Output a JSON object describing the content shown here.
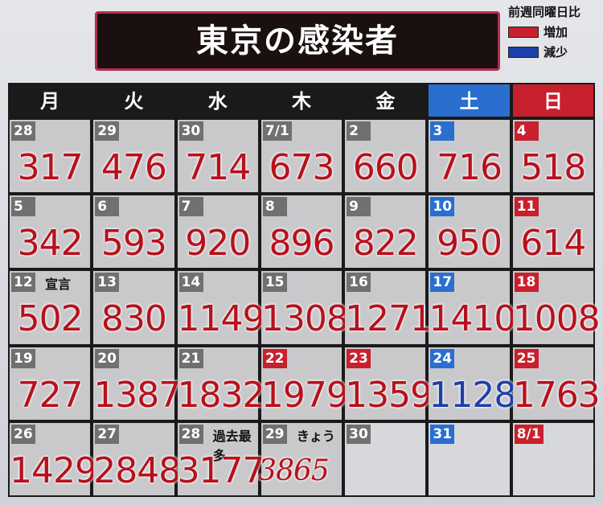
{
  "title": "東京の感染者",
  "legend": {
    "heading": "前週同曜日比",
    "items": [
      {
        "label": "増加",
        "color": "#c8202c"
      },
      {
        "label": "減少",
        "color": "#1f3fa8"
      }
    ]
  },
  "days": [
    {
      "label": "月",
      "color": "#1a1a1a"
    },
    {
      "label": "火",
      "color": "#1a1a1a"
    },
    {
      "label": "水",
      "color": "#1a1a1a"
    },
    {
      "label": "木",
      "color": "#1a1a1a"
    },
    {
      "label": "金",
      "color": "#1a1a1a"
    },
    {
      "label": "土",
      "color": "#2a6fd0"
    },
    {
      "label": "日",
      "color": "#c8202c"
    }
  ],
  "weeks": [
    [
      {
        "date": "28",
        "value": 317,
        "badge": "#707070",
        "value_color": "#b8101c"
      },
      {
        "date": "29",
        "value": 476,
        "badge": "#707070",
        "value_color": "#b8101c"
      },
      {
        "date": "30",
        "value": 714,
        "badge": "#707070",
        "value_color": "#b8101c"
      },
      {
        "date": "7/1",
        "value": 673,
        "badge": "#707070",
        "value_color": "#b8101c"
      },
      {
        "date": "2",
        "value": 660,
        "badge": "#707070",
        "value_color": "#b8101c"
      },
      {
        "date": "3",
        "value": 716,
        "badge": "#2a6fd0",
        "value_color": "#b8101c"
      },
      {
        "date": "4",
        "value": 518,
        "badge": "#c8202c",
        "value_color": "#b8101c"
      }
    ],
    [
      {
        "date": "5",
        "value": 342,
        "badge": "#707070",
        "value_color": "#b8101c"
      },
      {
        "date": "6",
        "value": 593,
        "badge": "#707070",
        "value_color": "#b8101c"
      },
      {
        "date": "7",
        "value": 920,
        "badge": "#707070",
        "value_color": "#b8101c"
      },
      {
        "date": "8",
        "value": 896,
        "badge": "#707070",
        "value_color": "#b8101c"
      },
      {
        "date": "9",
        "value": 822,
        "badge": "#707070",
        "value_color": "#b8101c"
      },
      {
        "date": "10",
        "value": 950,
        "badge": "#2a6fd0",
        "value_color": "#b8101c"
      },
      {
        "date": "11",
        "value": 614,
        "badge": "#c8202c",
        "value_color": "#b8101c"
      }
    ],
    [
      {
        "date": "12",
        "value": 502,
        "note": "宣言",
        "badge": "#707070",
        "value_color": "#b8101c"
      },
      {
        "date": "13",
        "value": 830,
        "badge": "#707070",
        "value_color": "#b8101c"
      },
      {
        "date": "14",
        "value": 1149,
        "badge": "#707070",
        "value_color": "#b8101c"
      },
      {
        "date": "15",
        "value": 1308,
        "badge": "#707070",
        "value_color": "#b8101c"
      },
      {
        "date": "16",
        "value": 1271,
        "badge": "#707070",
        "value_color": "#b8101c"
      },
      {
        "date": "17",
        "value": 1410,
        "badge": "#2a6fd0",
        "value_color": "#b8101c"
      },
      {
        "date": "18",
        "value": 1008,
        "badge": "#c8202c",
        "value_color": "#b8101c"
      }
    ],
    [
      {
        "date": "19",
        "value": 727,
        "badge": "#707070",
        "value_color": "#b8101c"
      },
      {
        "date": "20",
        "value": 1387,
        "badge": "#707070",
        "value_color": "#b8101c"
      },
      {
        "date": "21",
        "value": 1832,
        "badge": "#707070",
        "value_color": "#b8101c"
      },
      {
        "date": "22",
        "value": 1979,
        "badge": "#c8202c",
        "value_color": "#b8101c"
      },
      {
        "date": "23",
        "value": 1359,
        "badge": "#c8202c",
        "value_color": "#b8101c"
      },
      {
        "date": "24",
        "value": 1128,
        "badge": "#2a6fd0",
        "value_color": "#1f3fa8"
      },
      {
        "date": "25",
        "value": 1763,
        "badge": "#c8202c",
        "value_color": "#b8101c"
      }
    ],
    [
      {
        "date": "26",
        "value": 1429,
        "badge": "#707070",
        "value_color": "#b8101c"
      },
      {
        "date": "27",
        "value": 2848,
        "badge": "#707070",
        "value_color": "#b8101c"
      },
      {
        "date": "28",
        "value": 3177,
        "note": "過去最多",
        "badge": "#707070",
        "value_color": "#b8101c"
      },
      {
        "date": "29",
        "value": 3865,
        "note": "きょう",
        "handwritten": true,
        "badge": "#707070",
        "value_color": "#b8101c"
      },
      {
        "date": "30",
        "badge": "#707070"
      },
      {
        "date": "31",
        "badge": "#2a6fd0"
      },
      {
        "date": "8/1",
        "badge": "#c8202c"
      }
    ]
  ]
}
